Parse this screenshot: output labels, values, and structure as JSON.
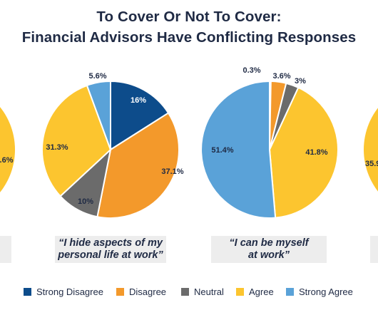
{
  "title": {
    "line1": "To Cover Or Not To Cover:",
    "line2": "Financial Advisors Have Conflicting Responses"
  },
  "colors": {
    "strong_disagree": "#0d4c8b",
    "disagree": "#f3992b",
    "neutral": "#6b6b6b",
    "agree": "#fcc52f",
    "strong_agree": "#5aa2d8"
  },
  "chart_data": [
    {
      "type": "pie",
      "partial": true,
      "categories": [
        "Agree"
      ],
      "values": [
        null
      ],
      "labels": [
        ".6%"
      ],
      "caption": ""
    },
    {
      "type": "pie",
      "categories": [
        "Strong Disagree",
        "Disagree",
        "Neutral",
        "Agree",
        "Strong Agree"
      ],
      "values": [
        16,
        37.1,
        10,
        31.3,
        5.6
      ],
      "labels": [
        "16%",
        "37.1%",
        "10%",
        "31.3%",
        "5.6%"
      ],
      "caption": [
        "“I hide aspects of my",
        "personal life at work”"
      ]
    },
    {
      "type": "pie",
      "categories": [
        "Strong Disagree",
        "Disagree",
        "Neutral",
        "Agree",
        "Strong Agree"
      ],
      "values": [
        0.3,
        3.6,
        3,
        41.8,
        51.4
      ],
      "labels": [
        "0.3%",
        "3.6%",
        "3%",
        "41.8%",
        "51.4%"
      ],
      "caption": [
        "“I can be myself",
        "at work”"
      ]
    },
    {
      "type": "pie",
      "partial": true,
      "categories": [
        "Agree"
      ],
      "values": [
        35.9
      ],
      "labels": [
        "35.9"
      ],
      "caption": ""
    }
  ],
  "legend": [
    {
      "label": "Strong Disagree",
      "color": "#0d4c8b"
    },
    {
      "label": "Disagree",
      "color": "#f3992b"
    },
    {
      "label": "Neutral",
      "color": "#6b6b6b"
    },
    {
      "label": "Agree",
      "color": "#fcc52f"
    },
    {
      "label": "Strong Agree",
      "color": "#5aa2d8"
    }
  ]
}
